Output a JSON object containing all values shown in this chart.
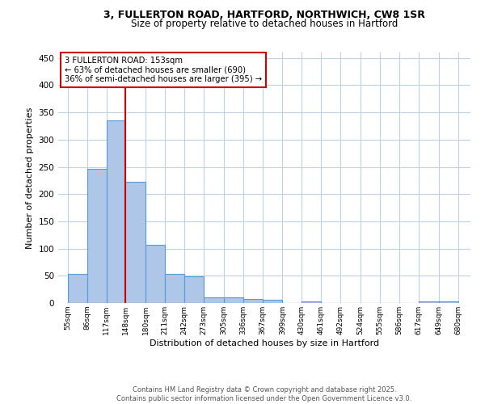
{
  "title1": "3, FULLERTON ROAD, HARTFORD, NORTHWICH, CW8 1SR",
  "title2": "Size of property relative to detached houses in Hartford",
  "xlabel": "Distribution of detached houses by size in Hartford",
  "ylabel": "Number of detached properties",
  "footnote1": "Contains HM Land Registry data © Crown copyright and database right 2025.",
  "footnote2": "Contains public sector information licensed under the Open Government Licence v3.0.",
  "annotation_line1": "3 FULLERTON ROAD: 153sqm",
  "annotation_line2": "← 63% of detached houses are smaller (690)",
  "annotation_line3": "36% of semi-detached houses are larger (395) →",
  "red_line_x": 148,
  "bar_left_edges": [
    55,
    86,
    117,
    148,
    180,
    211,
    242,
    273,
    305,
    336,
    367,
    399,
    430,
    461,
    492,
    524,
    555,
    586,
    617,
    649
  ],
  "bar_heights": [
    53,
    246,
    336,
    222,
    107,
    53,
    49,
    10,
    10,
    8,
    6,
    0,
    3,
    0,
    0,
    0,
    0,
    0,
    3,
    3
  ],
  "bar_widths": [
    31,
    31,
    31,
    32,
    31,
    31,
    31,
    32,
    31,
    31,
    32,
    31,
    31,
    31,
    32,
    31,
    31,
    31,
    32,
    31
  ],
  "x_tick_labels": [
    "55sqm",
    "86sqm",
    "117sqm",
    "148sqm",
    "180sqm",
    "211sqm",
    "242sqm",
    "273sqm",
    "305sqm",
    "336sqm",
    "367sqm",
    "399sqm",
    "430sqm",
    "461sqm",
    "492sqm",
    "524sqm",
    "555sqm",
    "586sqm",
    "617sqm",
    "649sqm",
    "680sqm"
  ],
  "x_tick_positions": [
    55,
    86,
    117,
    148,
    180,
    211,
    242,
    273,
    305,
    336,
    367,
    399,
    430,
    461,
    492,
    524,
    555,
    586,
    617,
    649,
    680
  ],
  "bar_color": "#aec6e8",
  "bar_edge_color": "#5b9bd5",
  "red_line_color": "#cc0000",
  "annotation_box_edge_color": "#cc0000",
  "background_color": "#ffffff",
  "grid_color": "#c0d0e8",
  "ylim": [
    0,
    460
  ],
  "xlim": [
    40,
    700
  ],
  "yticks": [
    0,
    50,
    100,
    150,
    200,
    250,
    300,
    350,
    400,
    450
  ]
}
